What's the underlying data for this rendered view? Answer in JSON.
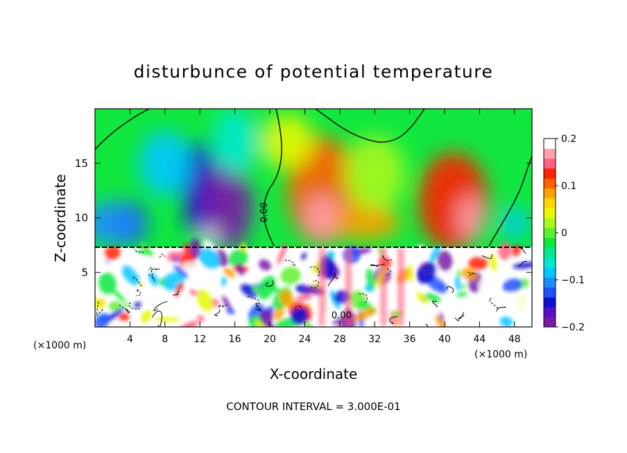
{
  "chart_data": {
    "type": "heatmap",
    "title": "disturbunce of potential temperature",
    "xlabel": "X-coordinate",
    "ylabel": "Z-coordinate",
    "x_unit_left": "(×1000 m)",
    "x_unit_right": "(×1000 m)",
    "footer": "CONTOUR INTERVAL = 3.000E-01",
    "xlim": [
      0,
      50
    ],
    "ylim": [
      0,
      20
    ],
    "x_ticks": [
      4,
      8,
      12,
      16,
      20,
      24,
      28,
      32,
      36,
      40,
      44,
      48
    ],
    "x_tick_labels": [
      "4",
      "8",
      "12",
      "16",
      "20",
      "24",
      "28",
      "32",
      "36",
      "40",
      "44",
      "48"
    ],
    "y_ticks": [
      5,
      10,
      15
    ],
    "y_tick_labels": [
      "5",
      "10",
      "15"
    ],
    "contour_labels": [
      {
        "text": "0.00",
        "x": 19.7,
        "z": 10.5,
        "rotate": -90
      },
      {
        "text": "0.00",
        "x": 28.2,
        "z": 0.8,
        "rotate": 0
      }
    ],
    "colorbar": {
      "min": -0.2,
      "max": 0.2,
      "ticks": [
        0.2,
        0.1,
        0,
        -0.1,
        -0.2
      ],
      "tick_labels": [
        "0.2",
        "0.1",
        "0",
        "−0.1",
        "−0.2"
      ],
      "colors": [
        "#7a1aa8",
        "#5a10c8",
        "#1010d0",
        "#1e50ff",
        "#1e8cff",
        "#00c8ff",
        "#00e8d0",
        "#00e890",
        "#10e840",
        "#60f030",
        "#a8f820",
        "#e8f800",
        "#ffd800",
        "#ffa000",
        "#ff6000",
        "#ff2000",
        "#ff6080",
        "#ffa0b0",
        "#ffffff"
      ]
    },
    "upper_layer_features": [
      {
        "x": 12,
        "z": 12.5,
        "w": 4,
        "h": 9,
        "value": -0.16
      },
      {
        "x": 15,
        "z": 11,
        "w": 6,
        "h": 8,
        "value": -0.19
      },
      {
        "x": 4,
        "z": 9.5,
        "w": 4,
        "h": 4,
        "value": -0.16
      },
      {
        "x": 8,
        "z": 15,
        "w": 6,
        "h": 6,
        "value": -0.09
      },
      {
        "x": 16,
        "z": 17,
        "w": 5,
        "h": 6,
        "value": -0.06
      },
      {
        "x": 2,
        "z": 9.5,
        "w": 7,
        "h": 4,
        "value": -0.12
      },
      {
        "x": 26,
        "z": 12.5,
        "w": 8,
        "h": 10,
        "value": 0.12
      },
      {
        "x": 26,
        "z": 10,
        "w": 4,
        "h": 4,
        "value": 0.17
      },
      {
        "x": 41,
        "z": 11.5,
        "w": 8,
        "h": 9,
        "value": 0.14
      },
      {
        "x": 43,
        "z": 10,
        "w": 3,
        "h": 4,
        "value": 0.18
      },
      {
        "x": 32,
        "z": 14,
        "w": 7,
        "h": 7,
        "value": 0.03
      },
      {
        "x": 31,
        "z": 9.5,
        "w": 8,
        "h": 3,
        "value": 0.09
      },
      {
        "x": 22,
        "z": 17,
        "w": 6,
        "h": 5,
        "value": 0.04
      },
      {
        "x": 48,
        "z": 9.5,
        "w": 3,
        "h": 3,
        "value": -0.1
      },
      {
        "x": 13,
        "z": 8.3,
        "w": 2,
        "h": 1.5,
        "value": 0.25
      }
    ]
  }
}
